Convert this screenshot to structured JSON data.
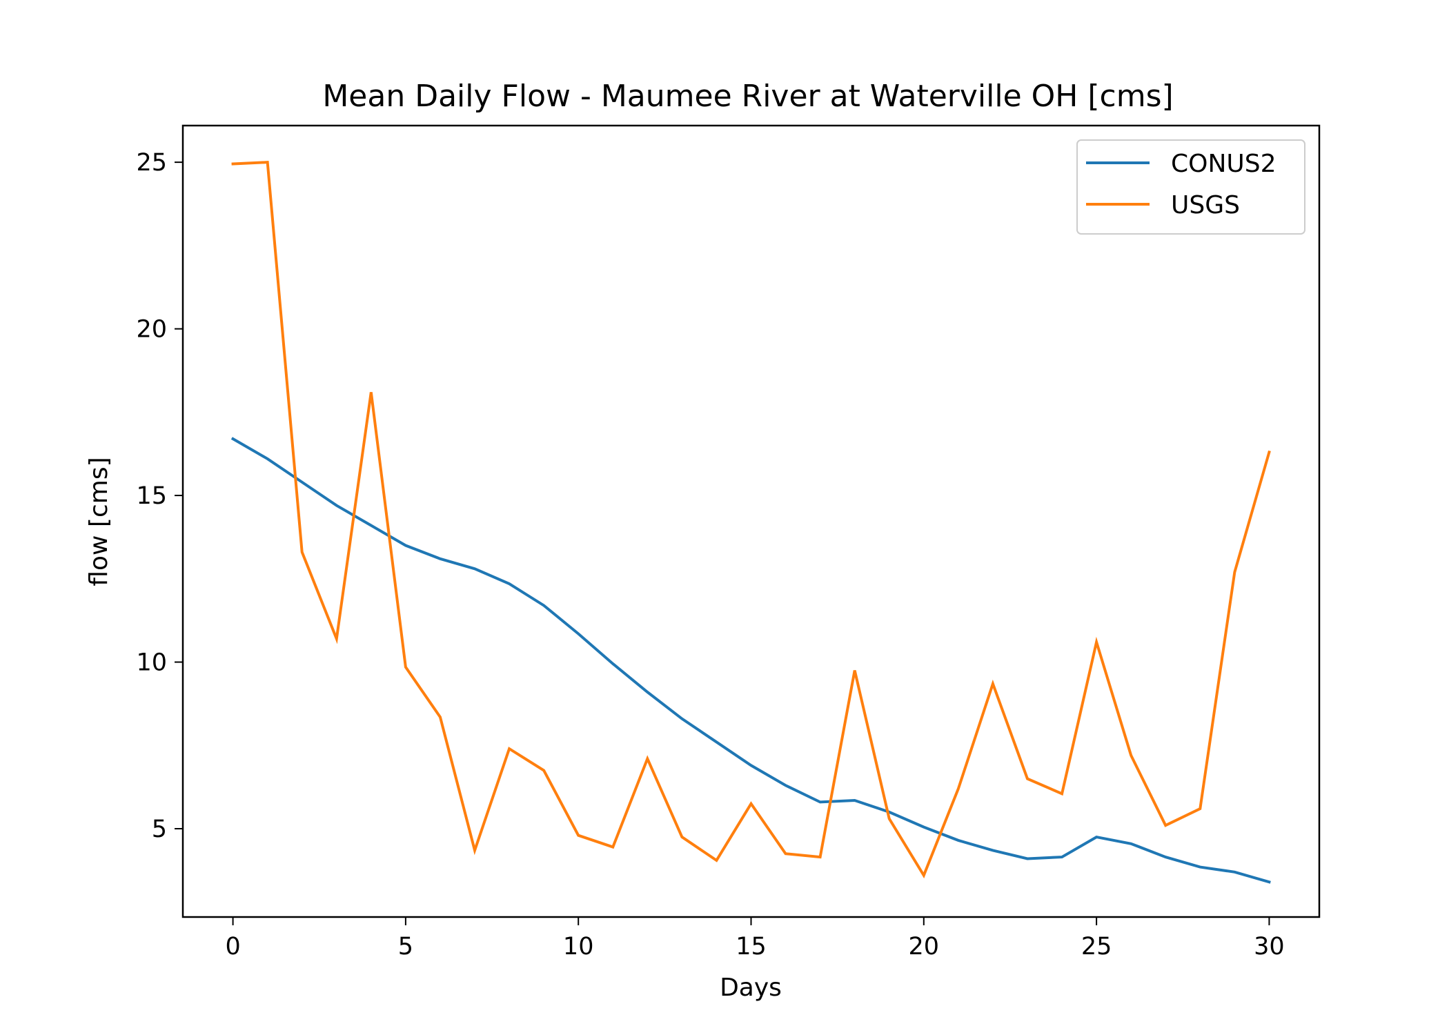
{
  "chart_data": {
    "type": "line",
    "title": "Mean Daily Flow - Maumee River at Waterville OH [cms]",
    "xlabel": "Days",
    "ylabel": "flow [cms]",
    "xlim": [
      -1.45,
      31.45
    ],
    "ylim": [
      2.35,
      26.1
    ],
    "xticks": [
      0,
      5,
      10,
      15,
      20,
      25,
      30
    ],
    "yticks": [
      5,
      10,
      15,
      20,
      25
    ],
    "grid": false,
    "legend_position": "upper right",
    "x": [
      0,
      1,
      2,
      3,
      4,
      5,
      6,
      7,
      8,
      9,
      10,
      11,
      12,
      13,
      14,
      15,
      16,
      17,
      18,
      19,
      20,
      21,
      22,
      23,
      24,
      25,
      26,
      27,
      28,
      29,
      30
    ],
    "series": [
      {
        "name": "CONUS2",
        "color": "#1f77b4",
        "values": [
          16.7,
          16.1,
          15.4,
          14.7,
          14.1,
          13.5,
          13.1,
          12.8,
          12.35,
          11.7,
          10.85,
          9.95,
          9.1,
          8.3,
          7.6,
          6.9,
          6.3,
          5.8,
          5.85,
          5.5,
          5.05,
          4.65,
          4.35,
          4.1,
          4.15,
          4.75,
          4.55,
          4.15,
          3.85,
          3.7,
          3.4
        ]
      },
      {
        "name": "USGS",
        "color": "#ff7f0e",
        "values": [
          24.95,
          25.0,
          13.3,
          10.7,
          18.1,
          9.85,
          8.35,
          4.35,
          7.4,
          6.75,
          4.8,
          4.45,
          7.1,
          4.75,
          4.05,
          5.75,
          4.25,
          4.15,
          9.75,
          5.3,
          3.6,
          6.2,
          9.35,
          6.5,
          6.05,
          10.6,
          7.2,
          5.1,
          5.6,
          12.7,
          16.3
        ]
      }
    ]
  }
}
